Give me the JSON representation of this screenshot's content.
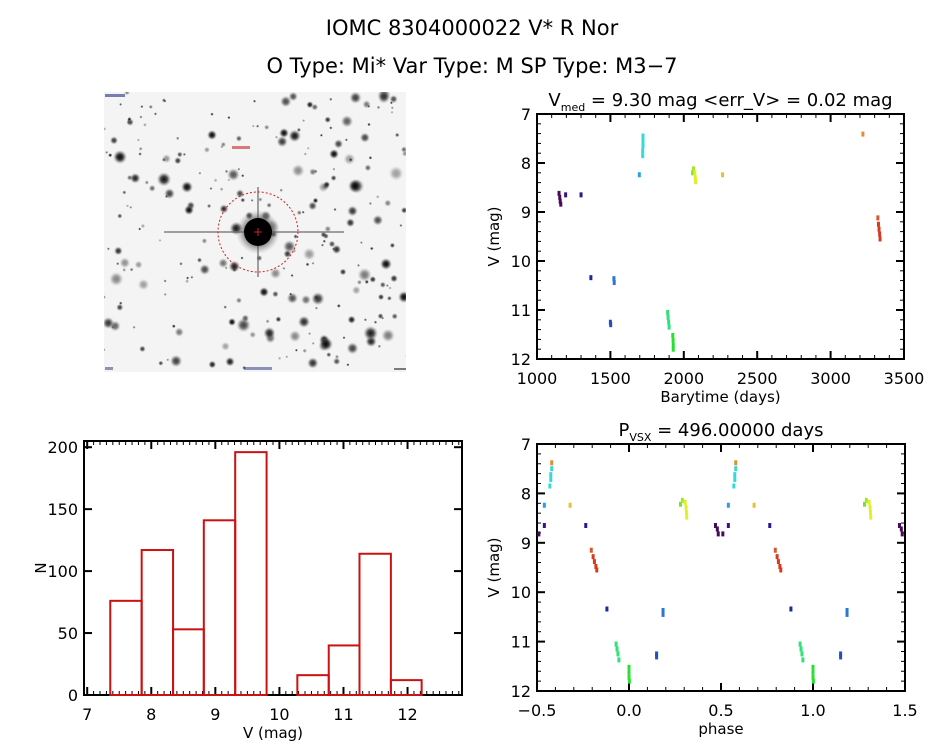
{
  "header": {
    "title_line1": "IOMC 8304000022    V* R Nor",
    "title_line2": "O Type: Mi*  Var Type: M   SP Type: M3−7"
  },
  "sky_image": {
    "description": "DSS finder chart, inverted grayscale",
    "marker_color": "#cc2222"
  },
  "chart_data": [
    {
      "id": "lightcurve",
      "type": "scatter",
      "title_main": "V",
      "title_sub": "med",
      "title_rest": " = 9.30 mag <err_V> = 0.02 mag",
      "xlabel": "Barytime (days)",
      "ylabel": "V (mag)",
      "xlim": [
        1000,
        3500
      ],
      "ylim": [
        12,
        7
      ],
      "xticks": [
        1000,
        1500,
        2000,
        2500,
        3000,
        3500
      ],
      "yticks": [
        7,
        8,
        9,
        10,
        11,
        12
      ],
      "points": [
        {
          "x": 1150,
          "y": 8.62,
          "color": "#4a0a5a"
        },
        {
          "x": 1155,
          "y": 8.7,
          "color": "#4a0a5a"
        },
        {
          "x": 1158,
          "y": 8.78,
          "color": "#4a0a5a"
        },
        {
          "x": 1162,
          "y": 8.84,
          "color": "#4a0a5a"
        },
        {
          "x": 1195,
          "y": 8.65,
          "color": "#3a1080"
        },
        {
          "x": 1300,
          "y": 8.65,
          "color": "#2a1890"
        },
        {
          "x": 1367,
          "y": 10.34,
          "color": "#1a2a9a"
        },
        {
          "x": 1500,
          "y": 11.25,
          "color": "#2050c0"
        },
        {
          "x": 1502,
          "y": 11.3,
          "color": "#2050c0"
        },
        {
          "x": 1524,
          "y": 10.36,
          "color": "#2a78d0"
        },
        {
          "x": 1526,
          "y": 10.44,
          "color": "#2a78d0"
        },
        {
          "x": 1697,
          "y": 8.24,
          "color": "#2aa0e0"
        },
        {
          "x": 1722,
          "y": 7.45,
          "color": "#38d8d8"
        },
        {
          "x": 1722,
          "y": 7.55,
          "color": "#38d8d8"
        },
        {
          "x": 1722,
          "y": 7.65,
          "color": "#38d8d8"
        },
        {
          "x": 1720,
          "y": 7.75,
          "color": "#38d8d8"
        },
        {
          "x": 1720,
          "y": 7.85,
          "color": "#38d8d8"
        },
        {
          "x": 1890,
          "y": 11.05,
          "color": "#30e078"
        },
        {
          "x": 1893,
          "y": 11.15,
          "color": "#30e078"
        },
        {
          "x": 1897,
          "y": 11.25,
          "color": "#30e078"
        },
        {
          "x": 1900,
          "y": 11.35,
          "color": "#30e078"
        },
        {
          "x": 1925,
          "y": 11.52,
          "color": "#28e030"
        },
        {
          "x": 1927,
          "y": 11.62,
          "color": "#28e030"
        },
        {
          "x": 1928,
          "y": 11.72,
          "color": "#28e030"
        },
        {
          "x": 1928,
          "y": 11.8,
          "color": "#28e030"
        },
        {
          "x": 2060,
          "y": 8.2,
          "color": "#80e030"
        },
        {
          "x": 2066,
          "y": 8.12,
          "color": "#a0e828"
        },
        {
          "x": 2075,
          "y": 8.2,
          "color": "#e0f028"
        },
        {
          "x": 2078,
          "y": 8.3,
          "color": "#e0f028"
        },
        {
          "x": 2080,
          "y": 8.38,
          "color": "#e0f028"
        },
        {
          "x": 2264,
          "y": 8.24,
          "color": "#e8c030"
        },
        {
          "x": 3220,
          "y": 7.41,
          "color": "#e09030"
        },
        {
          "x": 3322,
          "y": 9.12,
          "color": "#d85828"
        },
        {
          "x": 3326,
          "y": 9.25,
          "color": "#d83820"
        },
        {
          "x": 3330,
          "y": 9.35,
          "color": "#d83820"
        },
        {
          "x": 3334,
          "y": 9.45,
          "color": "#d83820"
        },
        {
          "x": 3337,
          "y": 9.55,
          "color": "#d83820"
        }
      ]
    },
    {
      "id": "histogram",
      "type": "bar",
      "xlabel": "V (mag)",
      "ylabel": "N",
      "xlim": [
        6.95,
        12.85
      ],
      "ylim": [
        0,
        205
      ],
      "xticks": [
        7,
        8,
        9,
        10,
        11,
        12
      ],
      "yticks": [
        0,
        50,
        100,
        150,
        200
      ],
      "bar_color": "#cc1111",
      "bins": [
        {
          "from": 7.36,
          "to": 7.85,
          "count": 76
        },
        {
          "from": 7.85,
          "to": 8.34,
          "count": 117
        },
        {
          "from": 8.34,
          "to": 8.82,
          "count": 53
        },
        {
          "from": 8.82,
          "to": 9.31,
          "count": 141
        },
        {
          "from": 9.31,
          "to": 9.8,
          "count": 196
        },
        {
          "from": 9.8,
          "to": 10.28,
          "count": 0
        },
        {
          "from": 10.28,
          "to": 10.77,
          "count": 16
        },
        {
          "from": 10.77,
          "to": 11.25,
          "count": 40
        },
        {
          "from": 11.25,
          "to": 11.74,
          "count": 114
        },
        {
          "from": 11.74,
          "to": 12.22,
          "count": 12
        }
      ]
    },
    {
      "id": "phased",
      "type": "scatter",
      "title_main": "P",
      "title_sub": "VSX",
      "title_rest": " = 496.00000 days",
      "xlabel": "phase",
      "ylabel": "V (mag)",
      "xlim": [
        -0.5,
        1.5
      ],
      "ylim": [
        12,
        7
      ],
      "xticks": [
        -0.5,
        0.0,
        0.5,
        1.0,
        1.5
      ],
      "xtick_labels": [
        "−0.5",
        "0.0",
        "0.5",
        "1.0",
        "1.5"
      ],
      "yticks": [
        7,
        8,
        9,
        10,
        11,
        12
      ],
      "repeat_period": 1,
      "points": [
        {
          "x": -0.42,
          "y": 7.38,
          "color": "#e09030"
        },
        {
          "x": -0.42,
          "y": 7.5,
          "color": "#38d8d8"
        },
        {
          "x": -0.425,
          "y": 7.62,
          "color": "#38d8d8"
        },
        {
          "x": -0.425,
          "y": 7.72,
          "color": "#38d8d8"
        },
        {
          "x": -0.43,
          "y": 7.85,
          "color": "#38d8d8"
        },
        {
          "x": -0.46,
          "y": 8.24,
          "color": "#2aa0e0"
        },
        {
          "x": -0.32,
          "y": 8.24,
          "color": "#e8c030"
        },
        {
          "x": -0.46,
          "y": 8.65,
          "color": "#3a1080"
        },
        {
          "x": -0.235,
          "y": 8.65,
          "color": "#2a1890"
        },
        {
          "x": -0.49,
          "y": 8.82,
          "color": "#4a0a5a"
        },
        {
          "x": -0.205,
          "y": 9.15,
          "color": "#d85828"
        },
        {
          "x": -0.195,
          "y": 9.28,
          "color": "#d83820"
        },
        {
          "x": -0.188,
          "y": 9.38,
          "color": "#d83820"
        },
        {
          "x": -0.18,
          "y": 9.48,
          "color": "#d83820"
        },
        {
          "x": -0.175,
          "y": 9.55,
          "color": "#d83820"
        },
        {
          "x": -0.12,
          "y": 10.34,
          "color": "#1a2a9a"
        },
        {
          "x": 0.185,
          "y": 10.37,
          "color": "#2a78d0"
        },
        {
          "x": 0.185,
          "y": 10.45,
          "color": "#2a78d0"
        },
        {
          "x": -0.07,
          "y": 11.05,
          "color": "#30e078"
        },
        {
          "x": -0.065,
          "y": 11.15,
          "color": "#30e078"
        },
        {
          "x": -0.06,
          "y": 11.25,
          "color": "#30e078"
        },
        {
          "x": -0.055,
          "y": 11.37,
          "color": "#30e078"
        },
        {
          "x": 0.0,
          "y": 11.52,
          "color": "#28e030"
        },
        {
          "x": 0.0,
          "y": 11.62,
          "color": "#28e030"
        },
        {
          "x": 0.0,
          "y": 11.72,
          "color": "#28e030"
        },
        {
          "x": 0.002,
          "y": 11.8,
          "color": "#28e030"
        },
        {
          "x": 0.15,
          "y": 11.25,
          "color": "#2050c0"
        },
        {
          "x": 0.15,
          "y": 11.31,
          "color": "#2050c0"
        },
        {
          "x": 0.28,
          "y": 8.22,
          "color": "#80e030"
        },
        {
          "x": 0.29,
          "y": 8.14,
          "color": "#a0e828"
        },
        {
          "x": 0.305,
          "y": 8.18,
          "color": "#e0f028"
        },
        {
          "x": 0.31,
          "y": 8.28,
          "color": "#e0f028"
        },
        {
          "x": 0.312,
          "y": 8.38,
          "color": "#e0f028"
        },
        {
          "x": 0.314,
          "y": 8.48,
          "color": "#e0f028"
        },
        {
          "x": 0.47,
          "y": 8.65,
          "color": "#4a0a5a"
        },
        {
          "x": 0.48,
          "y": 8.72,
          "color": "#4a0a5a"
        },
        {
          "x": 0.485,
          "y": 8.82,
          "color": "#4a0a5a"
        }
      ]
    }
  ]
}
